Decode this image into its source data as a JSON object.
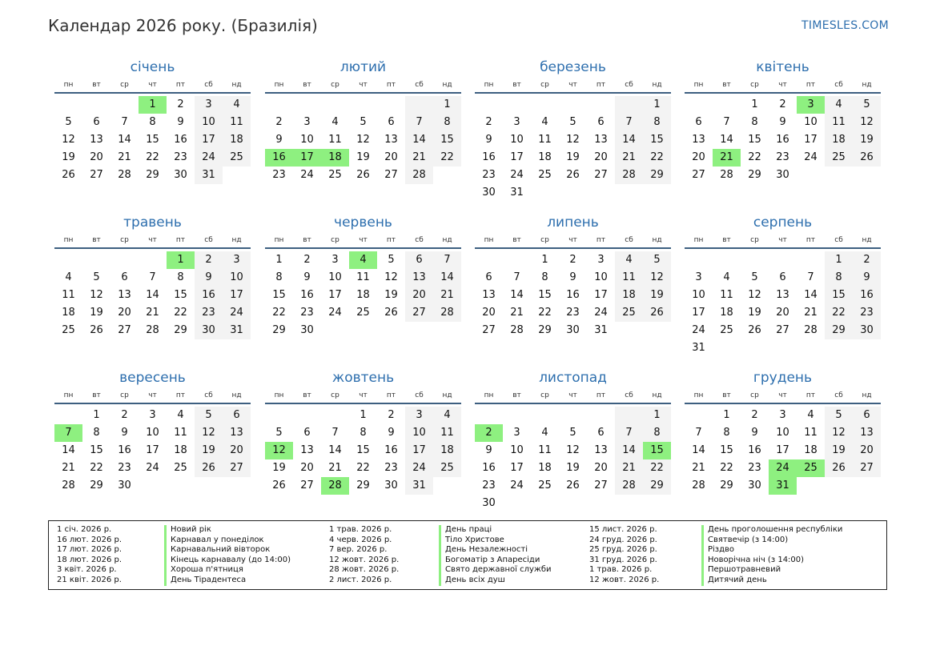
{
  "title": "Календар 2026 року. (Бразилія)",
  "site": "TIMESLES.COM",
  "day_headers": [
    "пн",
    "вт",
    "ср",
    "чт",
    "пт",
    "сб",
    "нд"
  ],
  "months": [
    {
      "name": "січень",
      "offset": 3,
      "days": 31,
      "holidays": [
        1
      ]
    },
    {
      "name": "лютий",
      "offset": 6,
      "days": 28,
      "holidays": [
        16,
        17,
        18
      ]
    },
    {
      "name": "березень",
      "offset": 6,
      "days": 31,
      "holidays": []
    },
    {
      "name": "квітень",
      "offset": 2,
      "days": 30,
      "holidays": [
        3,
        21
      ]
    },
    {
      "name": "травень",
      "offset": 4,
      "days": 31,
      "holidays": [
        1
      ]
    },
    {
      "name": "червень",
      "offset": 0,
      "days": 30,
      "holidays": [
        4
      ]
    },
    {
      "name": "липень",
      "offset": 2,
      "days": 31,
      "holidays": []
    },
    {
      "name": "серпень",
      "offset": 5,
      "days": 31,
      "holidays": []
    },
    {
      "name": "вересень",
      "offset": 1,
      "days": 30,
      "holidays": [
        7
      ]
    },
    {
      "name": "жовтень",
      "offset": 3,
      "days": 31,
      "holidays": [
        12,
        28
      ]
    },
    {
      "name": "листопад",
      "offset": 6,
      "days": 30,
      "holidays": [
        2,
        15
      ]
    },
    {
      "name": "грудень",
      "offset": 1,
      "days": 31,
      "holidays": [
        24,
        25,
        31
      ]
    }
  ],
  "legend": {
    "col1_dates": [
      "1 січ. 2026 р.",
      "16 лют. 2026 р.",
      "17 лют. 2026 р.",
      "18 лют. 2026 р.",
      "3 квіт. 2026 р.",
      "21 квіт. 2026 р."
    ],
    "col1_names": [
      "Новий рік",
      "Карнавал у понеділок",
      "Карнавальний вівторок",
      "Кінець карнавалу (до 14:00)",
      "Хороша п'ятниця",
      "День Тірадентеса"
    ],
    "col2_dates": [
      "1 трав. 2026 р.",
      "4 черв. 2026 р.",
      "7 вер. 2026 р.",
      "12 жовт. 2026 р.",
      "28 жовт. 2026 р.",
      "2 лист. 2026 р."
    ],
    "col2_names": [
      "День праці",
      "Тіло Христове",
      "День Незалежності",
      "Богоматір з Апаресіди",
      "Свято державної служби",
      "День всіх душ"
    ],
    "col3_dates": [
      "15 лист. 2026 р.",
      "24 груд. 2026 р.",
      "25 груд. 2026 р.",
      "31 груд. 2026 р.",
      "1 трав. 2026 р.",
      "12 жовт. 2026 р."
    ],
    "col3_names": [
      "День проголошення республіки",
      "Святвечір (з 14:00)",
      "Різдво",
      "Новорічна ніч (з 14:00)",
      "Першотравневий",
      "Дитячий день"
    ]
  },
  "colors": {
    "accent": "#2e6fae",
    "holiday": "#8ef080",
    "weekend": "#f3f3f3",
    "rule": "#3d5f80"
  }
}
